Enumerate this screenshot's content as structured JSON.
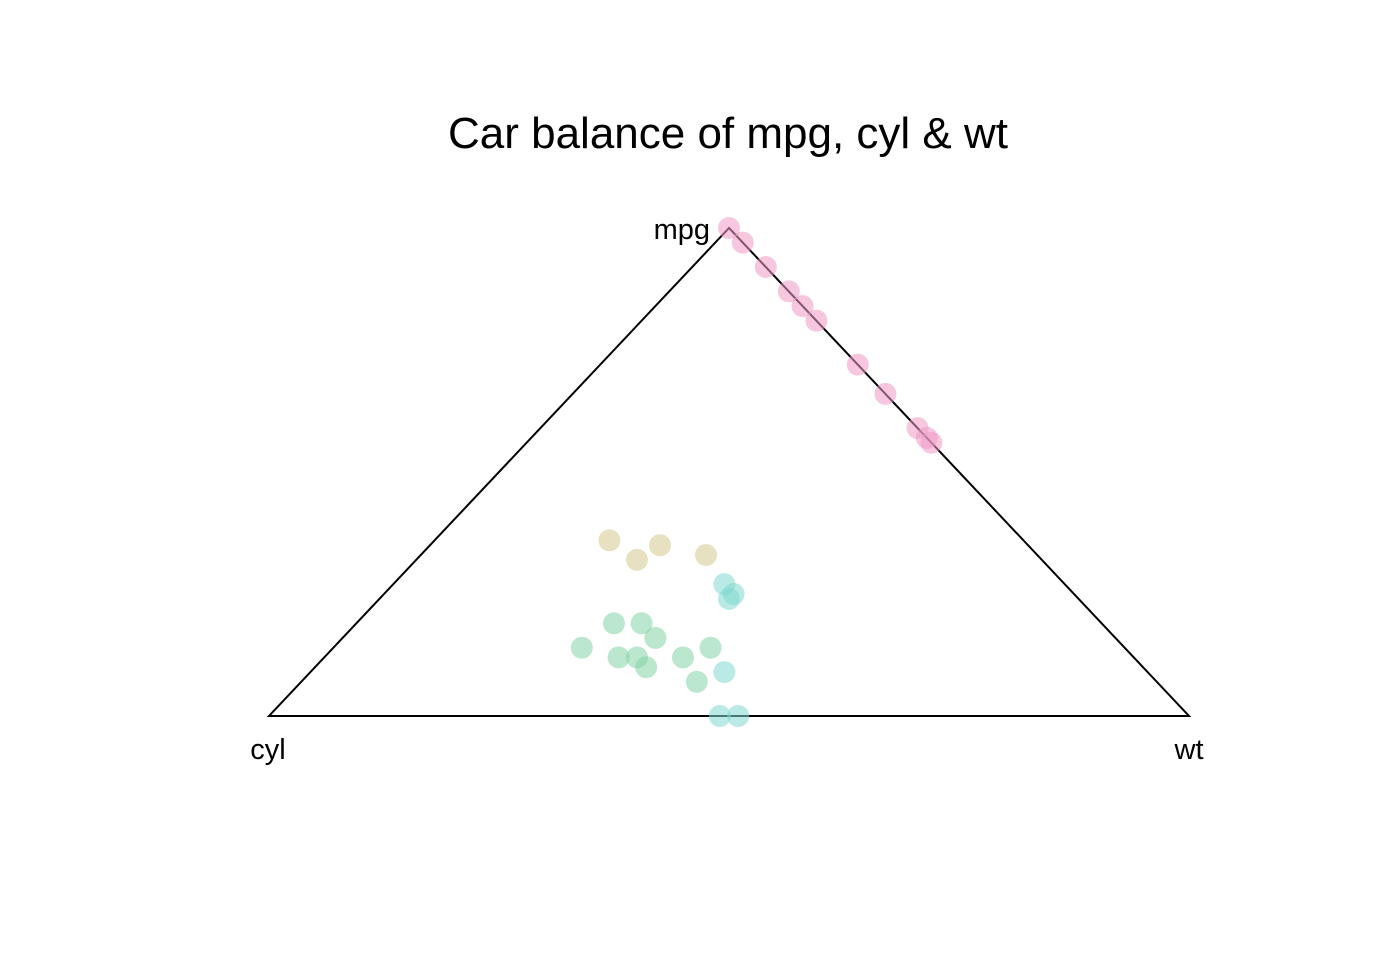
{
  "chart_data": {
    "type": "scatter",
    "subtype": "ternary",
    "title": "Car balance of mpg, cyl & wt",
    "vertex_labels": {
      "top": "mpg",
      "left": "cyl",
      "right": "wt"
    },
    "grid": false,
    "legend": "none",
    "point_style": "semi-transparent filled circles",
    "groups": [
      {
        "color": "#EE99C4",
        "points": [
          {
            "mpg": 1.0,
            "cyl": 0.0,
            "wt": 0.0
          },
          {
            "mpg": 0.97,
            "cyl": 0.0,
            "wt": 0.03
          },
          {
            "mpg": 0.92,
            "cyl": 0.0,
            "wt": 0.08
          },
          {
            "mpg": 0.87,
            "cyl": 0.0,
            "wt": 0.13
          },
          {
            "mpg": 0.84,
            "cyl": 0.0,
            "wt": 0.16
          },
          {
            "mpg": 0.81,
            "cyl": 0.0,
            "wt": 0.19
          },
          {
            "mpg": 0.72,
            "cyl": 0.0,
            "wt": 0.28
          },
          {
            "mpg": 0.66,
            "cyl": 0.0,
            "wt": 0.34
          },
          {
            "mpg": 0.59,
            "cyl": 0.0,
            "wt": 0.41
          },
          {
            "mpg": 0.57,
            "cyl": 0.0,
            "wt": 0.43
          },
          {
            "mpg": 0.56,
            "cyl": 0.0,
            "wt": 0.44
          }
        ]
      },
      {
        "color": "#D4C98E",
        "points": [
          {
            "mpg": 0.36,
            "cyl": 0.45,
            "wt": 0.19
          },
          {
            "mpg": 0.35,
            "cyl": 0.4,
            "wt": 0.25
          },
          {
            "mpg": 0.32,
            "cyl": 0.44,
            "wt": 0.24
          },
          {
            "mpg": 0.33,
            "cyl": 0.36,
            "wt": 0.31
          }
        ]
      },
      {
        "color": "#7FD8CF",
        "points": [
          {
            "mpg": 0.27,
            "cyl": 0.37,
            "wt": 0.36
          },
          {
            "mpg": 0.25,
            "cyl": 0.37,
            "wt": 0.38
          },
          {
            "mpg": 0.24,
            "cyl": 0.38,
            "wt": 0.38
          },
          {
            "mpg": 0.09,
            "cyl": 0.46,
            "wt": 0.45
          },
          {
            "mpg": 0.0,
            "cyl": 0.51,
            "wt": 0.49
          },
          {
            "mpg": 0.0,
            "cyl": 0.49,
            "wt": 0.51
          }
        ]
      },
      {
        "color": "#84D3A6",
        "points": [
          {
            "mpg": 0.19,
            "cyl": 0.53,
            "wt": 0.28
          },
          {
            "mpg": 0.19,
            "cyl": 0.5,
            "wt": 0.31
          },
          {
            "mpg": 0.16,
            "cyl": 0.5,
            "wt": 0.34
          },
          {
            "mpg": 0.14,
            "cyl": 0.59,
            "wt": 0.27
          },
          {
            "mpg": 0.14,
            "cyl": 0.45,
            "wt": 0.41
          },
          {
            "mpg": 0.12,
            "cyl": 0.56,
            "wt": 0.32
          },
          {
            "mpg": 0.12,
            "cyl": 0.54,
            "wt": 0.34
          },
          {
            "mpg": 0.12,
            "cyl": 0.49,
            "wt": 0.39
          },
          {
            "mpg": 0.1,
            "cyl": 0.54,
            "wt": 0.36
          },
          {
            "mpg": 0.07,
            "cyl": 0.5,
            "wt": 0.43
          }
        ]
      }
    ]
  }
}
